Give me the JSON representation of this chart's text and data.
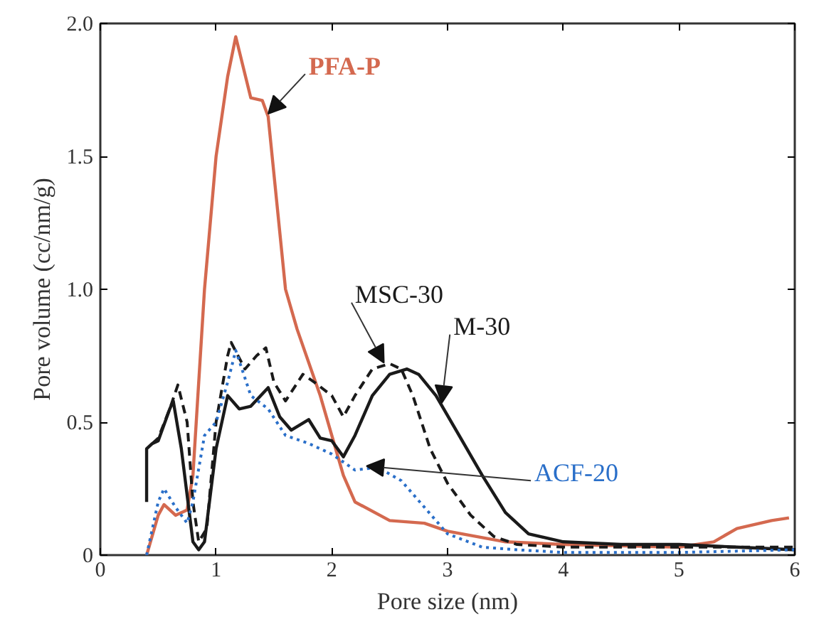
{
  "chart_data": {
    "type": "line",
    "xlabel": "Pore size (nm)",
    "ylabel": "Pore volume (cc/nm/g)",
    "xlim": [
      0,
      6
    ],
    "ylim": [
      0,
      2.0
    ],
    "xticks": [
      0,
      1,
      2,
      3,
      4,
      5,
      6
    ],
    "yticks": [
      0,
      {
        "value": 0.5,
        "label": "0.5"
      },
      {
        "value": 1.0,
        "label": "1.0"
      },
      {
        "value": 1.5,
        "label": "1.5"
      },
      {
        "value": 2.0,
        "label": "2.0"
      }
    ],
    "grid": false,
    "legend": false,
    "marker": "none",
    "series": [
      {
        "name": "PFA-P",
        "color": "#d4694f",
        "line_style": "solid",
        "x": [
          0.4,
          0.5,
          0.55,
          0.65,
          0.75,
          0.8,
          0.9,
          1.0,
          1.1,
          1.17,
          1.3,
          1.4,
          1.45,
          1.6,
          1.7,
          1.9,
          2.1,
          2.2,
          2.5,
          2.8,
          3.0,
          3.5,
          4.0,
          5.0,
          5.3,
          5.5,
          5.8,
          5.95
        ],
        "values": [
          0.0,
          0.15,
          0.19,
          0.15,
          0.17,
          0.3,
          1.0,
          1.5,
          1.8,
          1.95,
          1.72,
          1.71,
          1.65,
          1.0,
          0.85,
          0.6,
          0.3,
          0.2,
          0.13,
          0.12,
          0.09,
          0.05,
          0.04,
          0.03,
          0.05,
          0.1,
          0.13,
          0.14
        ]
      },
      {
        "name": "MSC-30",
        "color": "#1a1a1a",
        "line_style": "dashed",
        "x": [
          0.45,
          0.5,
          0.6,
          0.67,
          0.75,
          0.8,
          0.85,
          0.92,
          1.0,
          1.1,
          1.13,
          1.25,
          1.35,
          1.43,
          1.5,
          1.6,
          1.75,
          1.85,
          2.0,
          2.1,
          2.2,
          2.35,
          2.5,
          2.6,
          2.7,
          2.85,
          3.0,
          3.2,
          3.4,
          3.6,
          4.0,
          5.0,
          6.0
        ],
        "values": [
          0.42,
          0.44,
          0.55,
          0.64,
          0.5,
          0.2,
          0.05,
          0.1,
          0.5,
          0.75,
          0.8,
          0.7,
          0.75,
          0.78,
          0.65,
          0.58,
          0.68,
          0.65,
          0.6,
          0.52,
          0.6,
          0.7,
          0.72,
          0.7,
          0.6,
          0.4,
          0.27,
          0.15,
          0.07,
          0.04,
          0.03,
          0.03,
          0.03
        ]
      },
      {
        "name": "M-30",
        "color": "#1a1a1a",
        "line_style": "solid",
        "x": [
          0.4,
          0.4,
          0.45,
          0.5,
          0.6,
          0.63,
          0.7,
          0.8,
          0.85,
          0.9,
          1.0,
          1.1,
          1.2,
          1.3,
          1.45,
          1.55,
          1.65,
          1.8,
          1.9,
          2.0,
          2.1,
          2.2,
          2.35,
          2.5,
          2.65,
          2.75,
          2.9,
          3.1,
          3.3,
          3.5,
          3.7,
          4.0,
          4.5,
          5.0,
          5.5,
          6.0
        ],
        "values": [
          0.2,
          0.4,
          0.42,
          0.43,
          0.55,
          0.58,
          0.4,
          0.05,
          0.02,
          0.05,
          0.4,
          0.6,
          0.55,
          0.56,
          0.63,
          0.52,
          0.47,
          0.51,
          0.44,
          0.43,
          0.37,
          0.45,
          0.6,
          0.68,
          0.7,
          0.68,
          0.6,
          0.45,
          0.3,
          0.16,
          0.08,
          0.05,
          0.04,
          0.04,
          0.03,
          0.02
        ]
      },
      {
        "name": "ACF-20",
        "color": "#2a6fc9",
        "line_style": "dotted",
        "x": [
          0.4,
          0.5,
          0.55,
          0.65,
          0.75,
          0.8,
          0.9,
          1.0,
          1.1,
          1.17,
          1.3,
          1.45,
          1.6,
          1.8,
          2.0,
          2.2,
          2.4,
          2.6,
          2.8,
          3.0,
          3.3,
          3.6,
          4.0,
          5.0,
          6.0
        ],
        "values": [
          0.0,
          0.2,
          0.25,
          0.18,
          0.12,
          0.2,
          0.45,
          0.5,
          0.65,
          0.77,
          0.6,
          0.55,
          0.45,
          0.42,
          0.38,
          0.32,
          0.33,
          0.28,
          0.18,
          0.08,
          0.03,
          0.02,
          0.01,
          0.01,
          0.02
        ]
      }
    ]
  }
}
